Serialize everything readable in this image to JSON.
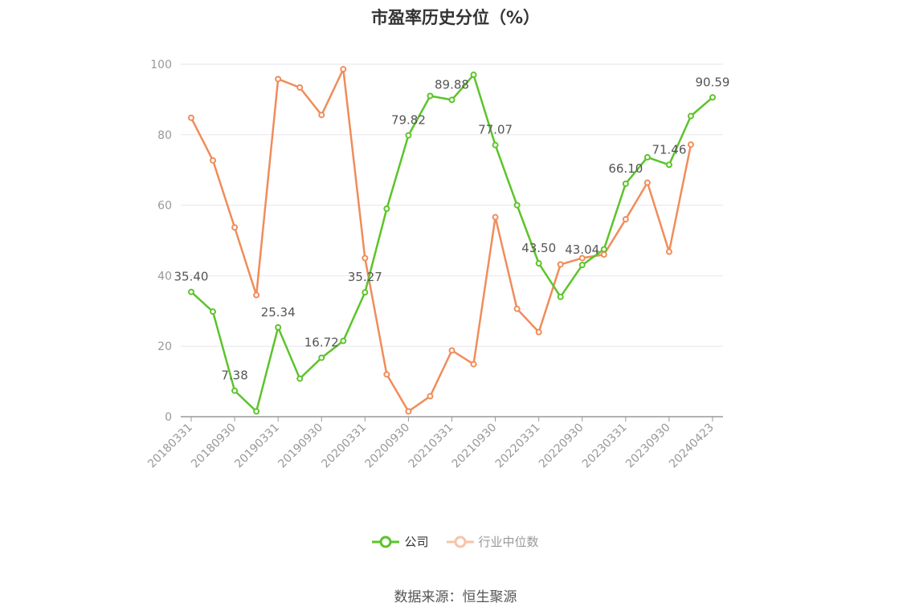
{
  "chart_data": {
    "type": "line",
    "title": "市盈率历史分位（%）",
    "x": [
      "20180331",
      "20180630",
      "20180930",
      "20181231",
      "20190331",
      "20190630",
      "20190930",
      "20191231",
      "20200331",
      "20200630",
      "20200930",
      "20201231",
      "20210331",
      "20210630",
      "20210930",
      "20211231",
      "20220331",
      "20220630",
      "20220930",
      "20221230",
      "20230331",
      "20230630",
      "20230930",
      "20231231",
      "20240423"
    ],
    "xtick_labels": [
      "20180331",
      "20180930",
      "20190331",
      "20190930",
      "20200331",
      "20200930",
      "20210331",
      "20210930",
      "20220331",
      "20220930",
      "20230331",
      "20230930",
      "20240423"
    ],
    "ylim": [
      0,
      100
    ],
    "yticks": [
      "0",
      "20",
      "40",
      "60",
      "80",
      "100"
    ],
    "grid": true,
    "legend_position": "bottom",
    "series": [
      {
        "name": "公司",
        "color": "#5cc42a",
        "values": [
          35.4,
          29.8,
          7.38,
          1.5,
          25.34,
          10.8,
          16.72,
          21.5,
          35.27,
          59.0,
          79.82,
          91.0,
          89.88,
          97.0,
          77.07,
          60.0,
          43.5,
          34.0,
          43.04,
          47.5,
          66.1,
          73.6,
          71.46,
          85.3,
          90.59
        ],
        "labels": [
          "35.40",
          "",
          "7.38",
          "",
          "25.34",
          "",
          "16.72",
          "",
          "35.27",
          "",
          "79.82",
          "",
          "89.88",
          "",
          "77.07",
          "",
          "43.50",
          "",
          "43.04",
          "",
          "66.10",
          "",
          "71.46",
          "",
          "90.59"
        ]
      },
      {
        "name": "行业中位数",
        "color": "#f08c5a",
        "values": [
          84.8,
          72.7,
          53.7,
          34.5,
          95.8,
          93.4,
          85.6,
          98.6,
          45.0,
          12.0,
          1.5,
          5.8,
          18.8,
          14.9,
          56.6,
          30.6,
          24.0,
          43.2,
          45.0,
          46.0,
          56.0,
          66.4,
          46.8,
          77.2,
          null
        ]
      }
    ]
  },
  "source_note": "数据来源：恒生聚源"
}
